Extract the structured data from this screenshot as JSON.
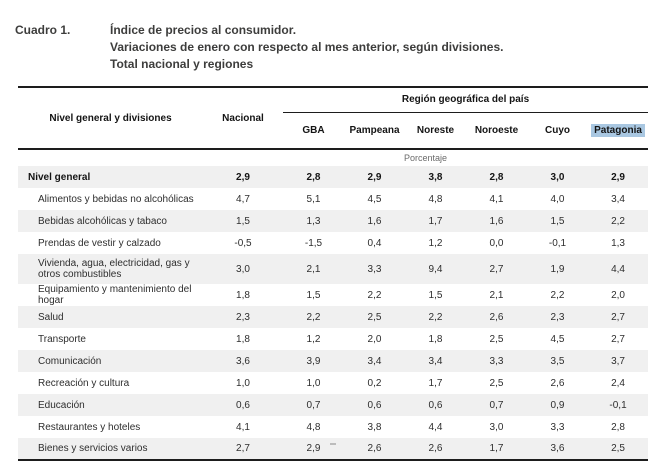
{
  "document": {
    "label": "Cuadro 1.",
    "title_lines": [
      "Índice de precios al consumidor.",
      "Variaciones de enero con respecto al mes anterior, según divisiones.",
      "Total nacional y regiones"
    ]
  },
  "table": {
    "row_header": "Nivel general y divisiones",
    "col_nacional": "Nacional",
    "region_group": "Región geográfica del país",
    "regions": [
      "GBA",
      "Pampeana",
      "Noreste",
      "Noroeste",
      "Cuyo",
      "Patagonia"
    ],
    "selected_region": "Patagonia",
    "unit_label": "Porcentaje",
    "columns": [
      "Nacional",
      "GBA",
      "Pampeana",
      "Noreste",
      "Noroeste",
      "Cuyo",
      "Patagonia"
    ],
    "rows": [
      {
        "label": "Nivel general",
        "bold": true,
        "values": [
          "2,9",
          "2,8",
          "2,9",
          "3,8",
          "2,8",
          "3,0",
          "2,9"
        ]
      },
      {
        "label": "Alimentos y bebidas no alcohólicas",
        "bold": false,
        "values": [
          "4,7",
          "5,1",
          "4,5",
          "4,8",
          "4,1",
          "4,0",
          "3,4"
        ]
      },
      {
        "label": "Bebidas alcohólicas y tabaco",
        "bold": false,
        "values": [
          "1,5",
          "1,3",
          "1,6",
          "1,7",
          "1,6",
          "1,5",
          "2,2"
        ]
      },
      {
        "label": "Prendas de vestir y calzado",
        "bold": false,
        "values": [
          "-0,5",
          "-1,5",
          "0,4",
          "1,2",
          "0,0",
          "-0,1",
          "1,3"
        ]
      },
      {
        "label": "Vivienda, agua, electricidad, gas y otros combustibles",
        "bold": false,
        "values": [
          "3,0",
          "2,1",
          "3,3",
          "9,4",
          "2,7",
          "1,9",
          "4,4"
        ]
      },
      {
        "label": "Equipamiento y mantenimiento del hogar",
        "bold": false,
        "values": [
          "1,8",
          "1,5",
          "2,2",
          "1,5",
          "2,1",
          "2,2",
          "2,0"
        ]
      },
      {
        "label": "Salud",
        "bold": false,
        "values": [
          "2,3",
          "2,2",
          "2,5",
          "2,2",
          "2,6",
          "2,3",
          "2,7"
        ]
      },
      {
        "label": "Transporte",
        "bold": false,
        "values": [
          "1,8",
          "1,2",
          "2,0",
          "1,8",
          "2,5",
          "4,5",
          "2,7"
        ]
      },
      {
        "label": "Comunicación",
        "bold": false,
        "values": [
          "3,6",
          "3,9",
          "3,4",
          "3,4",
          "3,3",
          "3,5",
          "3,7"
        ]
      },
      {
        "label": "Recreación y cultura",
        "bold": false,
        "values": [
          "1,0",
          "1,0",
          "0,2",
          "1,7",
          "2,5",
          "2,6",
          "2,4"
        ]
      },
      {
        "label": "Educación",
        "bold": false,
        "values": [
          "0,6",
          "0,7",
          "0,6",
          "0,6",
          "0,7",
          "0,9",
          "-0,1"
        ]
      },
      {
        "label": "Restaurantes y hoteles",
        "bold": false,
        "values": [
          "4,1",
          "4,8",
          "3,8",
          "4,4",
          "3,0",
          "3,3",
          "2,8"
        ]
      },
      {
        "label": "Bienes y servicios varios",
        "bold": false,
        "values": [
          "2,7",
          "2,9",
          "2,6",
          "2,6",
          "1,7",
          "3,6",
          "2,5"
        ]
      }
    ]
  },
  "colors": {
    "selection_highlight": "#a9c7e1",
    "row_stripe": "#f0f0f0",
    "rule": "#1d1d1d",
    "title_text": "#3d3d3c"
  }
}
